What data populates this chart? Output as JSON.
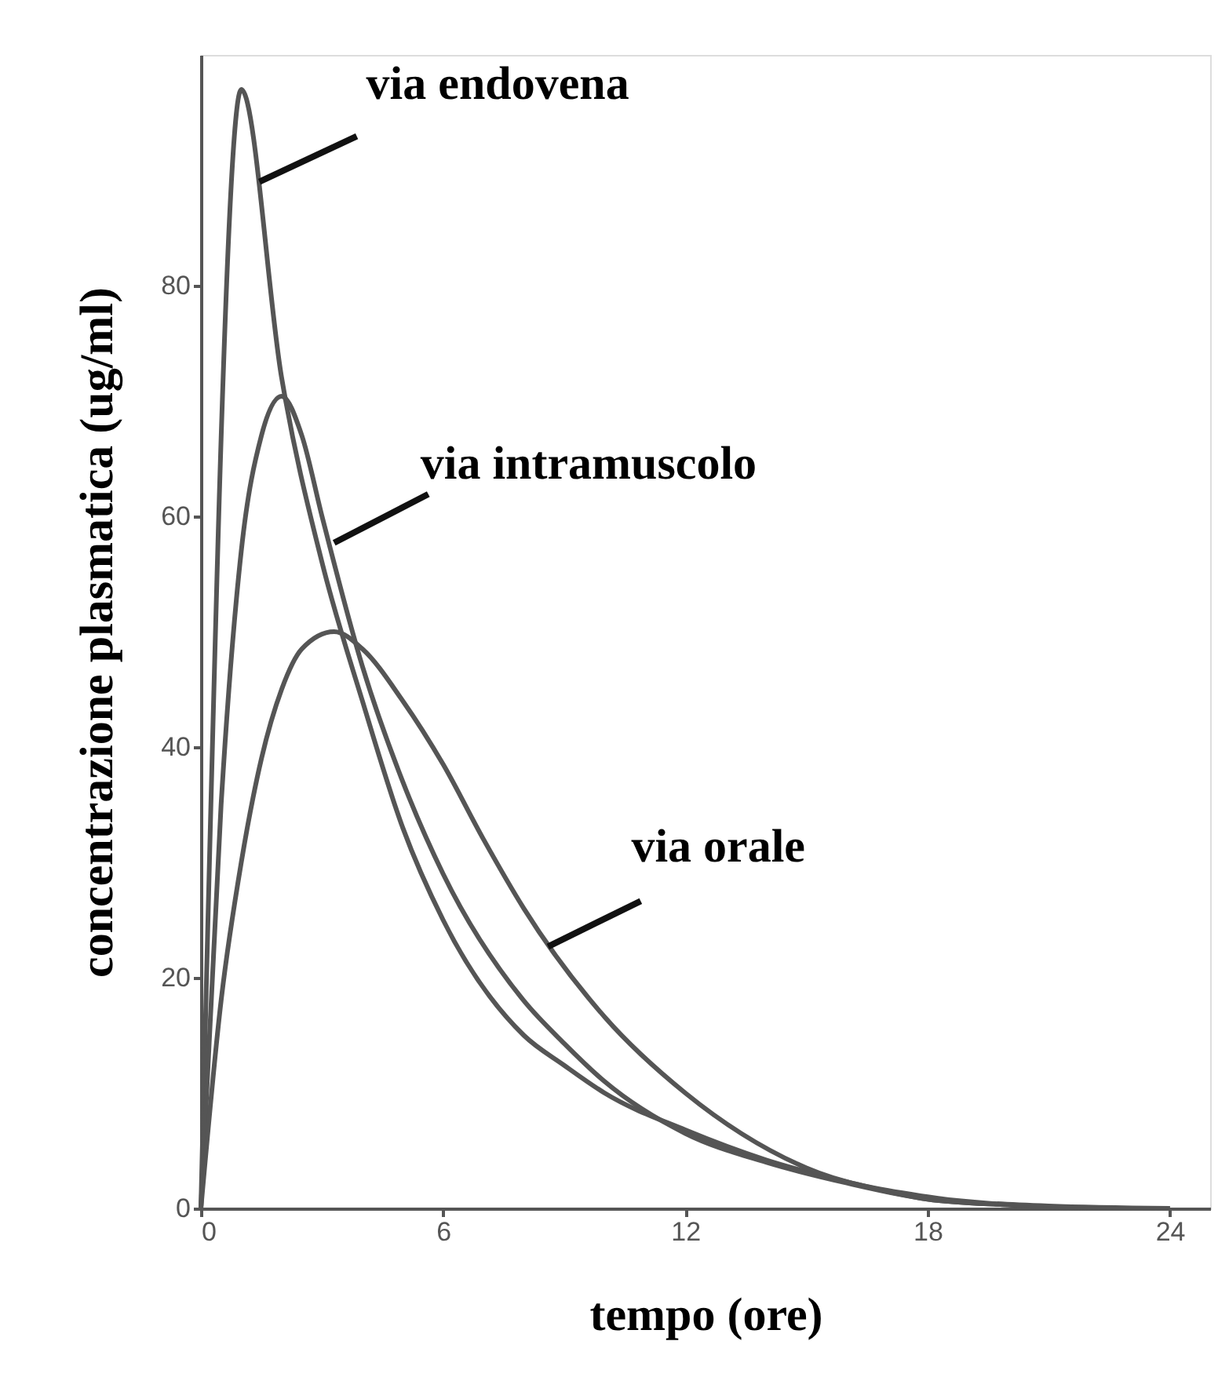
{
  "chart_data": {
    "type": "line",
    "xlabel": "tempo (ore)",
    "ylabel": "concentrazione plasmatica (ug/ml)",
    "xlim": [
      0,
      25
    ],
    "ylim": [
      0,
      100
    ],
    "xticks": [
      0,
      6,
      12,
      18,
      24
    ],
    "yticks": [
      0,
      20,
      40,
      60,
      80
    ],
    "grid": false,
    "marker": "none",
    "line_style": "solid",
    "series": [
      {
        "color": "#555555",
        "x": [
          0,
          1,
          2,
          3,
          4,
          5,
          6,
          8,
          9,
          10,
          12,
          14,
          16,
          18,
          20,
          22,
          24
        ],
        "values": [
          0,
          97,
          72,
          56,
          44,
          33,
          25,
          15,
          12.4,
          10,
          6.8,
          4.2,
          2.3,
          0.8,
          0.3,
          0,
          0
        ]
      },
      {
        "color": "#555555",
        "x": [
          0,
          0.5,
          1,
          1.5,
          2,
          2.5,
          3,
          4,
          5,
          6,
          8,
          9,
          10,
          12,
          14,
          16,
          18,
          20,
          22,
          24
        ],
        "values": [
          0,
          35,
          57,
          67,
          70.4,
          67,
          60,
          47,
          37,
          29,
          18,
          14.3,
          11,
          6.5,
          4,
          2.2,
          0.8,
          0.3,
          0,
          0
        ]
      },
      {
        "color": "#555555",
        "x": [
          0,
          0.5,
          1,
          1.5,
          2,
          2.5,
          3.3,
          4,
          5,
          6,
          7,
          8,
          10,
          12,
          15,
          18,
          21,
          24
        ],
        "values": [
          0,
          18,
          30,
          39,
          45,
          48.5,
          50,
          48.5,
          44,
          38.5,
          32,
          26,
          16.6,
          10,
          3.5,
          1,
          0.2,
          0
        ]
      }
    ],
    "annotations": [
      {
        "text": "via endovena",
        "x": 1.45,
        "y": 89
      },
      {
        "text": "via intramuscolo",
        "x": 3.3,
        "y": 57.7
      },
      {
        "text": "via orale",
        "x": 8.6,
        "y": 22.7
      }
    ]
  }
}
